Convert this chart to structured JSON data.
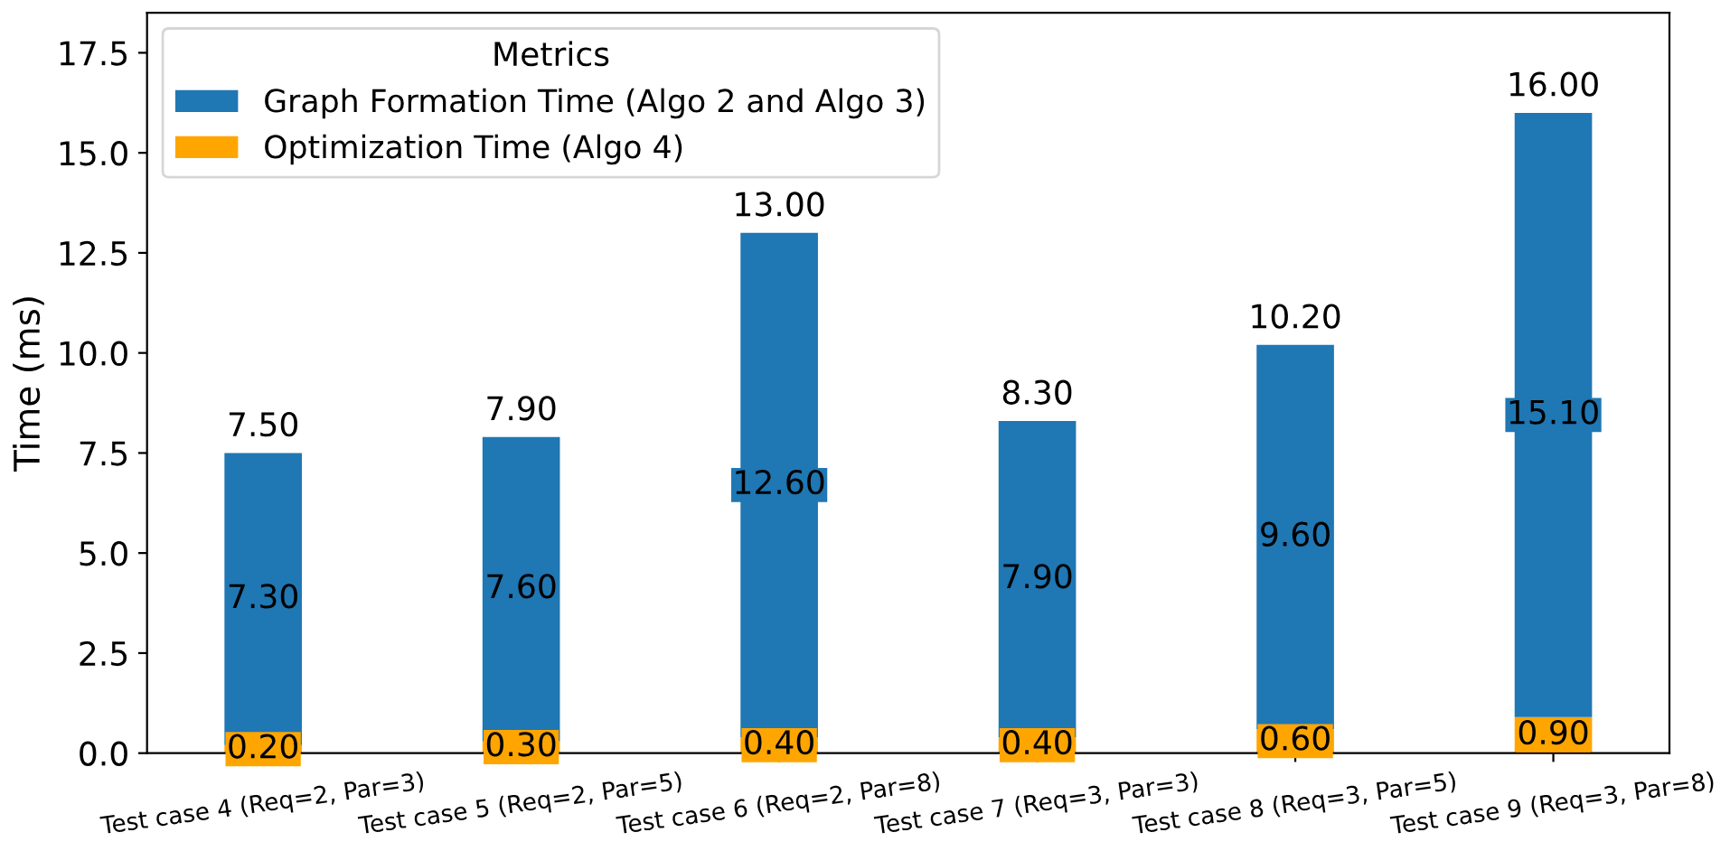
{
  "chart_data": {
    "type": "bar",
    "stacked": true,
    "ylabel": "Time (ms)",
    "legend_title": "Metrics",
    "legend": "top left",
    "grid": false,
    "categories": [
      "Test case 4 (Req=2, Par=3)",
      "Test case 5 (Req=2, Par=5)",
      "Test case 6 (Req=2, Par=8)",
      "Test case 7 (Req=3, Par=3)",
      "Test case 8 (Req=3, Par=5)",
      "Test case 9 (Req=3, Par=8)"
    ],
    "ylim": [
      0,
      18.5
    ],
    "yticks": [
      {
        "value": 0,
        "label": "0.0"
      },
      {
        "value": 2.5,
        "label": "2.5"
      },
      {
        "value": 5,
        "label": "5.0"
      },
      {
        "value": 7.5,
        "label": "7.5"
      },
      {
        "value": 10,
        "label": "10.0"
      },
      {
        "value": 12.5,
        "label": "12.5"
      },
      {
        "value": 15,
        "label": "15.0"
      },
      {
        "value": 17.5,
        "label": "17.5"
      }
    ],
    "series": [
      {
        "name": "Optimization Time (Algo 4)",
        "color": "#ffa500",
        "values": [
          0.2,
          0.3,
          0.4,
          0.4,
          0.6,
          0.9
        ],
        "value_labels": [
          "0.20",
          "0.30",
          "0.40",
          "0.40",
          "0.60",
          "0.90"
        ]
      },
      {
        "name": "Graph Formation Time (Algo 2 and Algo 3)",
        "color": "#1f77b4",
        "values": [
          7.3,
          7.6,
          12.6,
          7.9,
          9.6,
          15.1
        ],
        "value_labels": [
          "7.30",
          "7.60",
          "12.60",
          "7.90",
          "9.60",
          "15.10"
        ]
      }
    ],
    "totals": [
      "7.50",
      "7.90",
      "13.00",
      "8.30",
      "10.20",
      "16.00"
    ]
  }
}
